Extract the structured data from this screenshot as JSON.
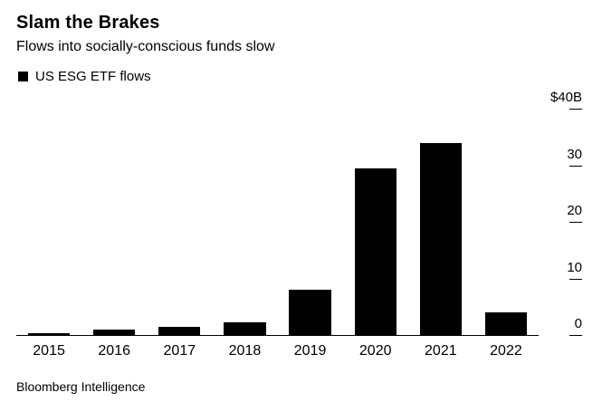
{
  "header": {
    "title": "Slam the Brakes",
    "subtitle": "Flows into socially-conscious funds slow"
  },
  "legend": {
    "label": "US ESG ETF flows",
    "marker_color": "#000000"
  },
  "source": "Bloomberg Intelligence",
  "chart_data": {
    "type": "bar",
    "title": "Slam the Brakes",
    "subtitle": "Flows into socially-conscious funds slow",
    "series_name": "US ESG ETF flows",
    "categories": [
      "2015",
      "2016",
      "2017",
      "2018",
      "2019",
      "2020",
      "2021",
      "2022"
    ],
    "values": [
      0.3,
      1.0,
      1.5,
      2.2,
      8.0,
      29.5,
      34.0,
      4.0
    ],
    "xlabel": "",
    "ylabel": "US ESG ETF flows ($B)",
    "ylim": [
      0,
      40
    ],
    "yticks": [
      {
        "value": 40,
        "label": "$40B"
      },
      {
        "value": 30,
        "label": "30"
      },
      {
        "value": 20,
        "label": "20"
      },
      {
        "value": 10,
        "label": "10"
      },
      {
        "value": 0,
        "label": "0"
      }
    ],
    "bar_color": "#000000",
    "axis_color": "#000000",
    "grid": false,
    "legend_position": "top-left",
    "y_axis_side": "right"
  }
}
